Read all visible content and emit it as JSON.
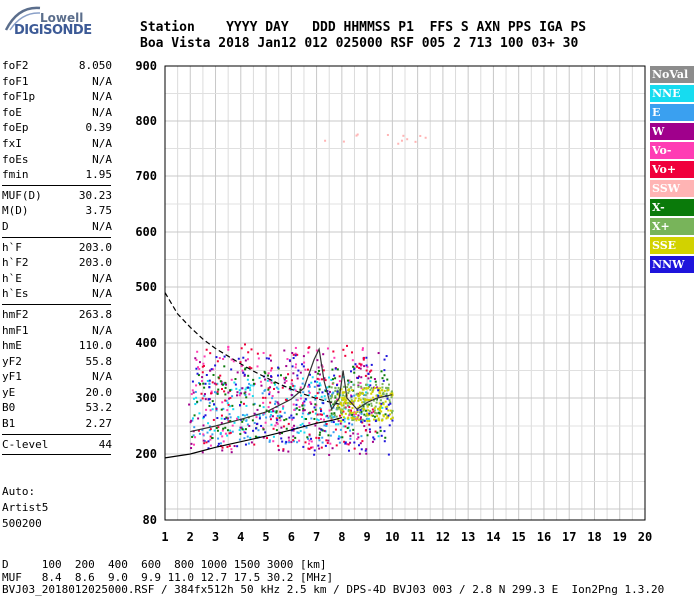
{
  "logo": {
    "line1": "Lowell",
    "line2": "DIGISONDE"
  },
  "header": {
    "row1": "Station    YYYY DAY   DDD HHMMSS P1  FFS S AXN PPS IGA PS",
    "row2": "Boa Vista 2018 Jan12 012 025000 RSF 005 2 713 100 03+ 30"
  },
  "params": {
    "group1": [
      {
        "name": "foF2",
        "value": "8.050"
      },
      {
        "name": "foF1",
        "value": "N/A"
      },
      {
        "name": "foF1p",
        "value": "N/A"
      },
      {
        "name": "foE",
        "value": "N/A"
      },
      {
        "name": "foEp",
        "value": "0.39"
      },
      {
        "name": "fxI",
        "value": "N/A"
      },
      {
        "name": "foEs",
        "value": "N/A"
      },
      {
        "name": "fmin",
        "value": "1.95"
      }
    ],
    "group2": [
      {
        "name": "MUF(D)",
        "value": "30.23"
      },
      {
        "name": "M(D)",
        "value": "3.75"
      },
      {
        "name": "D",
        "value": "N/A"
      }
    ],
    "group3": [
      {
        "name": "h`F",
        "value": "203.0"
      },
      {
        "name": "h`F2",
        "value": "203.0"
      },
      {
        "name": "h`E",
        "value": "N/A"
      },
      {
        "name": "h`Es",
        "value": "N/A"
      }
    ],
    "group4": [
      {
        "name": "hmF2",
        "value": "263.8"
      },
      {
        "name": "hmF1",
        "value": "N/A"
      },
      {
        "name": "hmE",
        "value": "110.0"
      },
      {
        "name": "yF2",
        "value": "55.8"
      },
      {
        "name": "yF1",
        "value": "N/A"
      },
      {
        "name": "yE",
        "value": "20.0"
      },
      {
        "name": "B0",
        "value": "53.2"
      },
      {
        "name": "B1",
        "value": "2.27"
      }
    ],
    "group5": [
      {
        "name": "C-level",
        "value": "44"
      }
    ]
  },
  "auto": {
    "line1": "Auto:",
    "line2": "Artist5",
    "line3": "500200"
  },
  "legend": [
    {
      "label": "NoVal",
      "color": "#8c8c8c"
    },
    {
      "label": "NNE",
      "color": "#16dcf0"
    },
    {
      "label": "E",
      "color": "#3aa0f0"
    },
    {
      "label": "W",
      "color": "#a0008c"
    },
    {
      "label": "Vo-",
      "color": "#ff3cb4"
    },
    {
      "label": "Vo+",
      "color": "#f0003c"
    },
    {
      "label": "SSW",
      "color": "#ffb4b4"
    },
    {
      "label": "X-",
      "color": "#0a7a0a"
    },
    {
      "label": "X+",
      "color": "#78b45a"
    },
    {
      "label": "SSE",
      "color": "#d2d200"
    },
    {
      "label": "NNW",
      "color": "#1e14dc"
    }
  ],
  "footer": {
    "line1": "D     100  200  400  600  800 1000 1500 3000 [km]",
    "line2": "MUF   8.4  8.6  9.0  9.9 11.0 12.7 17.5 30.2 [MHz]",
    "line3": "BVJ03_2018012025000.RSF / 384fx512h 50 kHz 2.5 km / DPS-4D BVJ03 003 / 2.8 N 299.3 E  Ion2Png 1.3.20"
  },
  "chart_data": {
    "type": "scatter",
    "title": "",
    "xlabel": "",
    "ylabel": "",
    "xlim": [
      1,
      20
    ],
    "ylim": [
      80,
      900
    ],
    "x_ticks": [
      1,
      2,
      3,
      4,
      5,
      6,
      7,
      8,
      9,
      10,
      11,
      12,
      13,
      14,
      15,
      16,
      17,
      18,
      19,
      20
    ],
    "y_ticks": [
      80,
      200,
      300,
      400,
      500,
      600,
      700,
      800,
      900
    ],
    "y_tick_labels": [
      "80",
      "200",
      "300",
      "400",
      "500",
      "600",
      "700",
      "800",
      "900"
    ],
    "grid": true,
    "series": [
      {
        "name": "NNE",
        "cluster": {
          "xmin": 2.0,
          "xmax": 9.6,
          "ymin": 230,
          "ymax": 340
        }
      },
      {
        "name": "E",
        "cluster": {
          "xmin": 2.0,
          "xmax": 9.0,
          "ymin": 220,
          "ymax": 330
        }
      },
      {
        "name": "W",
        "cluster": {
          "xmin": 1.9,
          "xmax": 9.5,
          "ymin": 200,
          "ymax": 390
        }
      },
      {
        "name": "Vo-",
        "cluster": {
          "xmin": 2.0,
          "xmax": 9.0,
          "ymin": 210,
          "ymax": 400
        }
      },
      {
        "name": "Vo+",
        "cluster": {
          "xmin": 2.2,
          "xmax": 9.3,
          "ymin": 210,
          "ymax": 400
        }
      },
      {
        "name": "SSW",
        "cluster": {
          "xmin": 7.0,
          "xmax": 11.3,
          "ymin": 760,
          "ymax": 780
        }
      },
      {
        "name": "X-",
        "cluster": {
          "xmin": 2.0,
          "xmax": 9.8,
          "ymin": 230,
          "ymax": 360
        }
      },
      {
        "name": "X+",
        "cluster": {
          "xmin": 7.5,
          "xmax": 10.0,
          "ymin": 260,
          "ymax": 330
        }
      },
      {
        "name": "SSE",
        "cluster": {
          "xmin": 7.8,
          "xmax": 10.0,
          "ymin": 260,
          "ymax": 320
        }
      },
      {
        "name": "NNW",
        "cluster": {
          "xmin": 2.0,
          "xmax": 10.0,
          "ymin": 200,
          "ymax": 380
        }
      }
    ],
    "lines": {
      "profile_solid": [
        [
          1.0,
          193
        ],
        [
          2.0,
          200
        ],
        [
          3.0,
          212
        ],
        [
          4.0,
          222
        ],
        [
          5.0,
          232
        ],
        [
          6.0,
          243
        ],
        [
          7.0,
          255
        ],
        [
          7.6,
          260
        ],
        [
          8.0,
          265
        ]
      ],
      "profile_dashed": [
        [
          1.0,
          490
        ],
        [
          1.5,
          452
        ],
        [
          2.0,
          428
        ],
        [
          2.5,
          407
        ],
        [
          3.0,
          390
        ],
        [
          3.5,
          376
        ],
        [
          4.0,
          362
        ],
        [
          4.5,
          349
        ],
        [
          5.0,
          337
        ],
        [
          5.5,
          326
        ],
        [
          6.0,
          316
        ],
        [
          6.5,
          307
        ],
        [
          7.0,
          299
        ],
        [
          7.5,
          293
        ],
        [
          8.0,
          288
        ]
      ],
      "trace": [
        [
          2.0,
          240
        ],
        [
          3.0,
          250
        ],
        [
          4.0,
          262
        ],
        [
          5.0,
          275
        ],
        [
          6.0,
          298
        ],
        [
          6.5,
          318
        ],
        [
          6.9,
          370
        ],
        [
          7.1,
          389
        ],
        [
          7.3,
          330
        ],
        [
          7.6,
          280
        ],
        [
          7.9,
          300
        ],
        [
          8.05,
          350
        ],
        [
          8.2,
          300
        ],
        [
          8.6,
          280
        ],
        [
          9.0,
          292
        ],
        [
          9.4,
          300
        ],
        [
          10.0,
          306
        ]
      ]
    }
  }
}
